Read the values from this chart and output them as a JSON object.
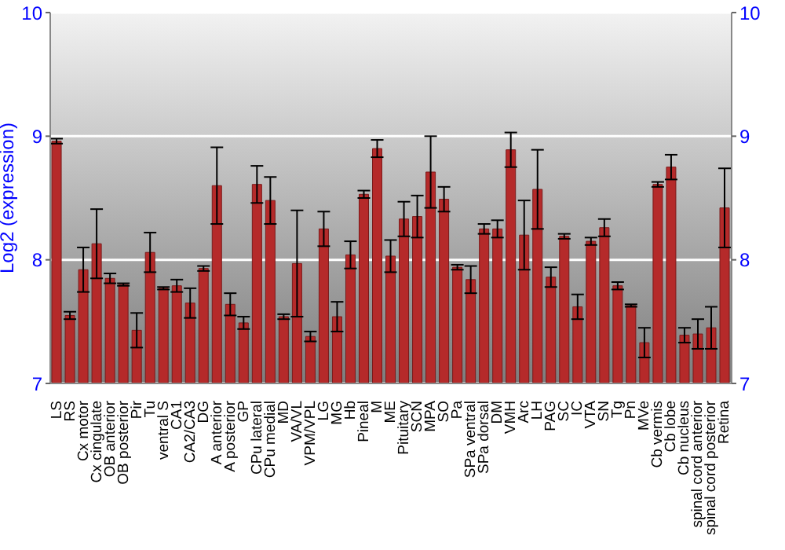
{
  "chart_data": {
    "type": "bar",
    "ylabel": "Log2 (expression)",
    "categories": [
      "LS",
      "RS",
      "Cx motor",
      "Cx cingulate",
      "OB anterior",
      "OB posterior",
      "Pir",
      "Tu",
      "ventral S",
      "CA1",
      "CA2/CA3",
      "DG",
      "A anterior",
      "A posterior",
      "GP",
      "CPu lateral",
      "CPu medial",
      "MD",
      "VA/VL",
      "VPM/VPL",
      "LG",
      "MG",
      "Hb",
      "Pineal",
      "M",
      "ME",
      "Pituitary",
      "SCN",
      "MPA",
      "SO",
      "Pa",
      "SPa ventral",
      "SPa dorsal",
      "DM",
      "VMH",
      "Arc",
      "LH",
      "PAG",
      "SC",
      "IC",
      "VTA",
      "SN",
      "Tg",
      "Pn",
      "MVe",
      "Cb vermis",
      "Cb lobe",
      "Cb nucleus",
      "spinal cord anterior",
      "spinal cord posterior",
      "Retina"
    ],
    "values": [
      8.96,
      7.55,
      7.92,
      8.13,
      7.85,
      7.8,
      7.43,
      8.06,
      7.77,
      7.79,
      7.65,
      7.93,
      8.6,
      7.64,
      7.49,
      8.61,
      8.48,
      7.54,
      7.97,
      7.38,
      8.25,
      7.54,
      8.04,
      8.53,
      8.9,
      8.03,
      8.33,
      8.35,
      8.71,
      8.49,
      7.94,
      7.84,
      8.25,
      8.25,
      8.89,
      8.2,
      8.57,
      7.86,
      8.19,
      7.62,
      8.15,
      8.26,
      7.79,
      7.63,
      7.33,
      8.61,
      8.75,
      7.39,
      7.4,
      7.45,
      8.42
    ],
    "errors": [
      0.02,
      0.03,
      0.18,
      0.28,
      0.04,
      0.01,
      0.14,
      0.16,
      0.01,
      0.05,
      0.12,
      0.02,
      0.31,
      0.09,
      0.05,
      0.15,
      0.19,
      0.02,
      0.43,
      0.04,
      0.14,
      0.12,
      0.11,
      0.03,
      0.07,
      0.13,
      0.14,
      0.17,
      0.29,
      0.1,
      0.02,
      0.11,
      0.04,
      0.07,
      0.14,
      0.28,
      0.32,
      0.08,
      0.02,
      0.1,
      0.03,
      0.07,
      0.03,
      0.01,
      0.12,
      0.02,
      0.1,
      0.06,
      0.12,
      0.17,
      0.32
    ],
    "color": "#b52a2a",
    "ylim": [
      7,
      10
    ],
    "yticks": [
      7,
      8,
      9,
      10
    ],
    "y2lim": [
      7,
      10
    ],
    "y2ticks": [
      7,
      8,
      9,
      10
    ],
    "grid": "y"
  }
}
